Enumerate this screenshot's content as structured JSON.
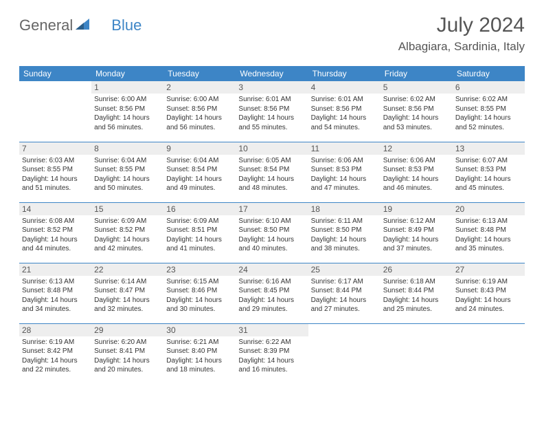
{
  "logo": {
    "text1": "General",
    "text2": "Blue"
  },
  "title": "July 2024",
  "location": "Albagiara, Sardinia, Italy",
  "colors": {
    "header_bg": "#3d85c6",
    "header_text": "#ffffff",
    "daynum_bg": "#eeeeee",
    "rule": "#3d85c6",
    "text": "#333333",
    "title_text": "#555555"
  },
  "weekdays": [
    "Sunday",
    "Monday",
    "Tuesday",
    "Wednesday",
    "Thursday",
    "Friday",
    "Saturday"
  ],
  "weeks": [
    [
      {
        "day": "",
        "sunrise": "",
        "sunset": "",
        "daylight": ""
      },
      {
        "day": "1",
        "sunrise": "Sunrise: 6:00 AM",
        "sunset": "Sunset: 8:56 PM",
        "daylight": "Daylight: 14 hours and 56 minutes."
      },
      {
        "day": "2",
        "sunrise": "Sunrise: 6:00 AM",
        "sunset": "Sunset: 8:56 PM",
        "daylight": "Daylight: 14 hours and 56 minutes."
      },
      {
        "day": "3",
        "sunrise": "Sunrise: 6:01 AM",
        "sunset": "Sunset: 8:56 PM",
        "daylight": "Daylight: 14 hours and 55 minutes."
      },
      {
        "day": "4",
        "sunrise": "Sunrise: 6:01 AM",
        "sunset": "Sunset: 8:56 PM",
        "daylight": "Daylight: 14 hours and 54 minutes."
      },
      {
        "day": "5",
        "sunrise": "Sunrise: 6:02 AM",
        "sunset": "Sunset: 8:56 PM",
        "daylight": "Daylight: 14 hours and 53 minutes."
      },
      {
        "day": "6",
        "sunrise": "Sunrise: 6:02 AM",
        "sunset": "Sunset: 8:55 PM",
        "daylight": "Daylight: 14 hours and 52 minutes."
      }
    ],
    [
      {
        "day": "7",
        "sunrise": "Sunrise: 6:03 AM",
        "sunset": "Sunset: 8:55 PM",
        "daylight": "Daylight: 14 hours and 51 minutes."
      },
      {
        "day": "8",
        "sunrise": "Sunrise: 6:04 AM",
        "sunset": "Sunset: 8:55 PM",
        "daylight": "Daylight: 14 hours and 50 minutes."
      },
      {
        "day": "9",
        "sunrise": "Sunrise: 6:04 AM",
        "sunset": "Sunset: 8:54 PM",
        "daylight": "Daylight: 14 hours and 49 minutes."
      },
      {
        "day": "10",
        "sunrise": "Sunrise: 6:05 AM",
        "sunset": "Sunset: 8:54 PM",
        "daylight": "Daylight: 14 hours and 48 minutes."
      },
      {
        "day": "11",
        "sunrise": "Sunrise: 6:06 AM",
        "sunset": "Sunset: 8:53 PM",
        "daylight": "Daylight: 14 hours and 47 minutes."
      },
      {
        "day": "12",
        "sunrise": "Sunrise: 6:06 AM",
        "sunset": "Sunset: 8:53 PM",
        "daylight": "Daylight: 14 hours and 46 minutes."
      },
      {
        "day": "13",
        "sunrise": "Sunrise: 6:07 AM",
        "sunset": "Sunset: 8:53 PM",
        "daylight": "Daylight: 14 hours and 45 minutes."
      }
    ],
    [
      {
        "day": "14",
        "sunrise": "Sunrise: 6:08 AM",
        "sunset": "Sunset: 8:52 PM",
        "daylight": "Daylight: 14 hours and 44 minutes."
      },
      {
        "day": "15",
        "sunrise": "Sunrise: 6:09 AM",
        "sunset": "Sunset: 8:52 PM",
        "daylight": "Daylight: 14 hours and 42 minutes."
      },
      {
        "day": "16",
        "sunrise": "Sunrise: 6:09 AM",
        "sunset": "Sunset: 8:51 PM",
        "daylight": "Daylight: 14 hours and 41 minutes."
      },
      {
        "day": "17",
        "sunrise": "Sunrise: 6:10 AM",
        "sunset": "Sunset: 8:50 PM",
        "daylight": "Daylight: 14 hours and 40 minutes."
      },
      {
        "day": "18",
        "sunrise": "Sunrise: 6:11 AM",
        "sunset": "Sunset: 8:50 PM",
        "daylight": "Daylight: 14 hours and 38 minutes."
      },
      {
        "day": "19",
        "sunrise": "Sunrise: 6:12 AM",
        "sunset": "Sunset: 8:49 PM",
        "daylight": "Daylight: 14 hours and 37 minutes."
      },
      {
        "day": "20",
        "sunrise": "Sunrise: 6:13 AM",
        "sunset": "Sunset: 8:48 PM",
        "daylight": "Daylight: 14 hours and 35 minutes."
      }
    ],
    [
      {
        "day": "21",
        "sunrise": "Sunrise: 6:13 AM",
        "sunset": "Sunset: 8:48 PM",
        "daylight": "Daylight: 14 hours and 34 minutes."
      },
      {
        "day": "22",
        "sunrise": "Sunrise: 6:14 AM",
        "sunset": "Sunset: 8:47 PM",
        "daylight": "Daylight: 14 hours and 32 minutes."
      },
      {
        "day": "23",
        "sunrise": "Sunrise: 6:15 AM",
        "sunset": "Sunset: 8:46 PM",
        "daylight": "Daylight: 14 hours and 30 minutes."
      },
      {
        "day": "24",
        "sunrise": "Sunrise: 6:16 AM",
        "sunset": "Sunset: 8:45 PM",
        "daylight": "Daylight: 14 hours and 29 minutes."
      },
      {
        "day": "25",
        "sunrise": "Sunrise: 6:17 AM",
        "sunset": "Sunset: 8:44 PM",
        "daylight": "Daylight: 14 hours and 27 minutes."
      },
      {
        "day": "26",
        "sunrise": "Sunrise: 6:18 AM",
        "sunset": "Sunset: 8:44 PM",
        "daylight": "Daylight: 14 hours and 25 minutes."
      },
      {
        "day": "27",
        "sunrise": "Sunrise: 6:19 AM",
        "sunset": "Sunset: 8:43 PM",
        "daylight": "Daylight: 14 hours and 24 minutes."
      }
    ],
    [
      {
        "day": "28",
        "sunrise": "Sunrise: 6:19 AM",
        "sunset": "Sunset: 8:42 PM",
        "daylight": "Daylight: 14 hours and 22 minutes."
      },
      {
        "day": "29",
        "sunrise": "Sunrise: 6:20 AM",
        "sunset": "Sunset: 8:41 PM",
        "daylight": "Daylight: 14 hours and 20 minutes."
      },
      {
        "day": "30",
        "sunrise": "Sunrise: 6:21 AM",
        "sunset": "Sunset: 8:40 PM",
        "daylight": "Daylight: 14 hours and 18 minutes."
      },
      {
        "day": "31",
        "sunrise": "Sunrise: 6:22 AM",
        "sunset": "Sunset: 8:39 PM",
        "daylight": "Daylight: 14 hours and 16 minutes."
      },
      {
        "day": "",
        "sunrise": "",
        "sunset": "",
        "daylight": ""
      },
      {
        "day": "",
        "sunrise": "",
        "sunset": "",
        "daylight": ""
      },
      {
        "day": "",
        "sunrise": "",
        "sunset": "",
        "daylight": ""
      }
    ]
  ]
}
